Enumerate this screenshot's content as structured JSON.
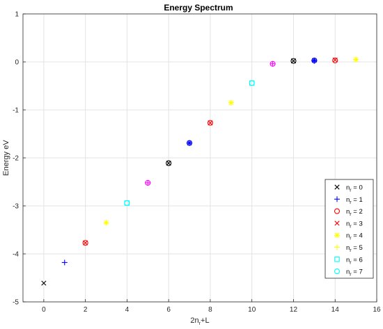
{
  "chart_data": {
    "type": "scatter",
    "title": "Energy Spectrum",
    "xlabel": {
      "base": "2n",
      "sub": "r",
      "rest": "+L"
    },
    "ylabel": "Energy eV",
    "xlim": [
      -1,
      16
    ],
    "ylim": [
      -5,
      1
    ],
    "xticks": [
      "0",
      "2",
      "4",
      "6",
      "8",
      "10",
      "12",
      "14",
      "16"
    ],
    "yticks": [
      "-5",
      "-4",
      "-3",
      "-2",
      "-1",
      "0",
      "1"
    ],
    "grid": true,
    "legend_position": "bottom-right",
    "series": [
      {
        "name": "0",
        "marker": "x",
        "color": "#000000",
        "points": [
          [
            0,
            -4.61
          ],
          [
            6,
            -2.11
          ],
          [
            12,
            0.02
          ]
        ]
      },
      {
        "name": "1",
        "marker": "plus",
        "color": "#0000ff",
        "points": [
          [
            1,
            -4.18
          ],
          [
            7,
            -1.69
          ],
          [
            13,
            0.02
          ]
        ]
      },
      {
        "name": "2",
        "marker": "circle",
        "color": "#ff0000",
        "points": [
          [
            2,
            -3.77
          ],
          [
            8,
            -1.27
          ],
          [
            14,
            0.03
          ]
        ]
      },
      {
        "name": "3",
        "marker": "x",
        "color": "#ff0000",
        "points": [
          [
            2,
            -3.77
          ],
          [
            8,
            -1.27
          ],
          [
            14,
            0.04
          ]
        ]
      },
      {
        "name": "4",
        "marker": "star",
        "color": "#ffff00",
        "points": [
          [
            3,
            -3.35
          ],
          [
            9,
            -0.85
          ],
          [
            15,
            0.05
          ]
        ]
      },
      {
        "name": "5",
        "marker": "plus",
        "color": "#ffff00",
        "points": [
          [
            3,
            -3.35
          ],
          [
            9,
            -0.85
          ],
          [
            15,
            0.05
          ]
        ]
      },
      {
        "name": "6",
        "marker": "square",
        "color": "#00ffff",
        "points": [
          [
            4,
            -2.94
          ],
          [
            10,
            -0.44
          ]
        ]
      },
      {
        "name": "7",
        "marker": "circle",
        "color": "#00ffff",
        "points": [
          [
            4,
            -2.94
          ],
          [
            10,
            -0.44
          ]
        ]
      }
    ],
    "extra_markers": [
      {
        "marker": "circle",
        "color": "#000000",
        "points": [
          [
            6,
            -2.11
          ],
          [
            12,
            0.02
          ]
        ]
      },
      {
        "marker": "circle",
        "color": "#0000ff",
        "points": [
          [
            7,
            -1.69
          ],
          [
            13,
            0.03
          ]
        ]
      },
      {
        "marker": "star",
        "color": "#0000ff",
        "points": [
          [
            7,
            -1.69
          ],
          [
            13,
            0.03
          ]
        ]
      },
      {
        "marker": "circle",
        "color": "#ff00ff",
        "points": [
          [
            5,
            -2.52
          ],
          [
            11,
            -0.04
          ]
        ]
      },
      {
        "marker": "plus",
        "color": "#ff00ff",
        "points": [
          [
            5,
            -2.52
          ],
          [
            11,
            -0.04
          ]
        ]
      }
    ],
    "legend_prefix": "n",
    "legend_prefix_sub": "r",
    "legend_sep": " = "
  }
}
